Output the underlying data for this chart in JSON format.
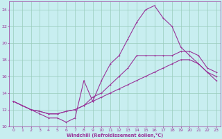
{
  "title": "",
  "xlabel": "Windchill (Refroidissement éolien,°C)",
  "bg_color": "#c8eef0",
  "line_color": "#993399",
  "grid_color": "#99ccbb",
  "xlim": [
    -0.5,
    23.5
  ],
  "ylim": [
    10,
    25
  ],
  "xticks": [
    0,
    1,
    2,
    3,
    4,
    5,
    6,
    7,
    8,
    9,
    10,
    11,
    12,
    13,
    14,
    15,
    16,
    17,
    18,
    19,
    20,
    21,
    22,
    23
  ],
  "yticks": [
    10,
    12,
    14,
    16,
    18,
    20,
    22,
    24
  ],
  "line1_x": [
    0,
    1,
    2,
    3,
    4,
    5,
    6,
    7,
    8,
    9,
    10,
    11,
    12,
    13,
    14,
    15,
    16,
    17,
    18,
    19,
    20,
    21,
    22,
    23
  ],
  "line1_y": [
    13.0,
    12.5,
    12.0,
    11.5,
    11.0,
    11.0,
    10.5,
    11.0,
    15.5,
    13.0,
    15.5,
    17.5,
    18.5,
    20.5,
    22.5,
    24.0,
    24.5,
    23.0,
    22.0,
    19.5,
    18.5,
    17.5,
    16.5,
    16.0
  ],
  "line2_x": [
    0,
    2,
    3,
    4,
    5,
    6,
    7,
    8,
    9,
    10,
    11,
    12,
    13,
    14,
    15,
    16,
    17,
    18,
    19,
    20,
    21,
    22,
    23
  ],
  "line2_y": [
    13.0,
    12.0,
    11.8,
    11.5,
    11.5,
    11.8,
    12.0,
    12.5,
    13.5,
    14.0,
    15.0,
    16.0,
    17.0,
    18.5,
    18.5,
    18.5,
    18.5,
    18.5,
    19.0,
    19.0,
    18.5,
    17.0,
    16.5
  ],
  "line3_x": [
    0,
    2,
    3,
    4,
    5,
    6,
    7,
    8,
    9,
    10,
    11,
    12,
    13,
    14,
    15,
    16,
    17,
    18,
    19,
    20,
    21,
    22,
    23
  ],
  "line3_y": [
    13.0,
    12.0,
    11.8,
    11.5,
    11.5,
    11.8,
    12.0,
    12.5,
    13.0,
    13.5,
    14.0,
    14.5,
    15.0,
    15.5,
    16.0,
    16.5,
    17.0,
    17.5,
    18.0,
    18.0,
    17.5,
    16.5,
    15.5
  ]
}
